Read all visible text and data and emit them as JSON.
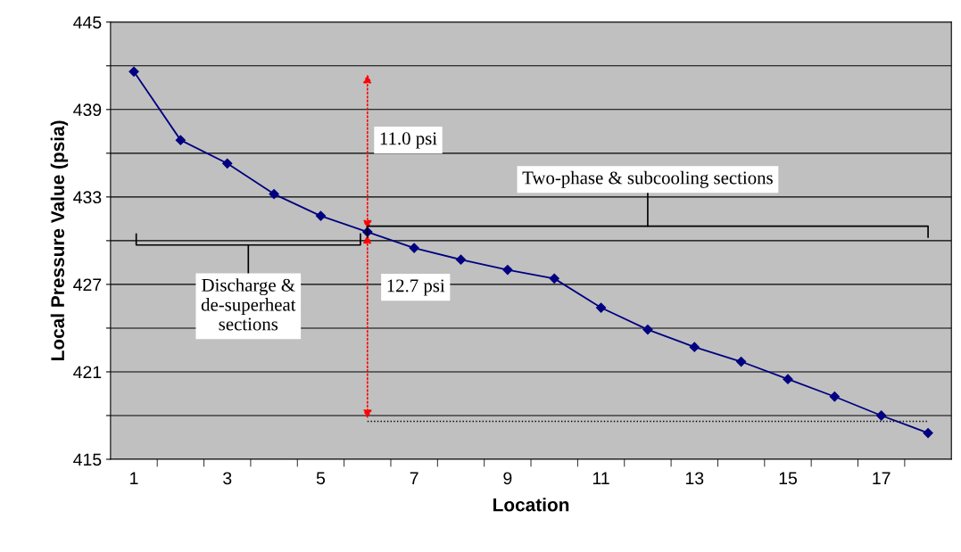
{
  "chart_data": {
    "type": "line",
    "xlabel": "Location",
    "ylabel": "Local Pressure Value (psia)",
    "categories": [
      "1",
      null,
      "3",
      null,
      "5",
      null,
      "7",
      null,
      "9",
      null,
      "11",
      null,
      "13",
      null,
      "15",
      null,
      "17",
      null
    ],
    "series": [
      {
        "color": "#000080",
        "values": [
          441.6,
          436.9,
          435.3,
          433.2,
          431.7,
          430.6,
          429.5,
          428.7,
          428.0,
          427.4,
          425.4,
          423.9,
          422.7,
          421.7,
          420.5,
          419.3,
          418.0,
          416.8
        ]
      }
    ],
    "ylim": [
      415,
      445
    ],
    "yticks": [
      415,
      {
        "value": 418,
        "label": null
      },
      421,
      {
        "value": 424,
        "label": null
      },
      427,
      {
        "value": 430,
        "label": null
      },
      433,
      {
        "value": 436,
        "label": null
      },
      439,
      {
        "value": 442,
        "label": null
      },
      445
    ],
    "ref_lines": [
      {
        "axis": "y",
        "value": 417.6,
        "color": "#000000",
        "line_style": "dotted"
      }
    ],
    "grid": "y",
    "marker": "diamond",
    "line_style": "solid",
    "legend": false,
    "annotations": [
      "11.0 psi",
      "12.7 psi",
      "Two-phase & subcooling sections",
      "Discharge &\nde-superheat\nsections"
    ]
  }
}
